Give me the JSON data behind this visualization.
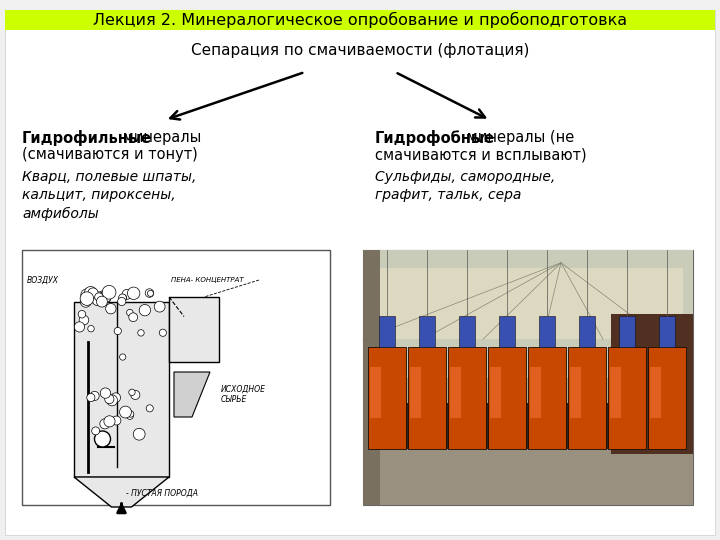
{
  "title": "Лекция 2. Минералогическое опробование и пробоподготовка",
  "subtitle": "Сепарация по смачиваемости (флотация)",
  "title_bg": "#ccff00",
  "bg_color": "#f0f0f0",
  "left_header_bold": "Гидрофильные",
  "left_header_normal": " минералы",
  "left_header_line2": "(смачиваются и тонут)",
  "left_italic": "Кварц, полевые шпаты,\nкальцит, пироксены,\nамфиболы",
  "right_header_bold": "Гидрофобные",
  "right_header_normal": " минералы (не",
  "right_header_line2": "смачиваются и всплывают)",
  "right_italic": "Сульфиды, самородные,\nграфит, тальк, сера",
  "arrow_color": "#000000",
  "text_color": "#000000",
  "title_fontsize": 11.5,
  "subtitle_fontsize": 11,
  "body_fontsize": 10.5,
  "italic_fontsize": 10
}
